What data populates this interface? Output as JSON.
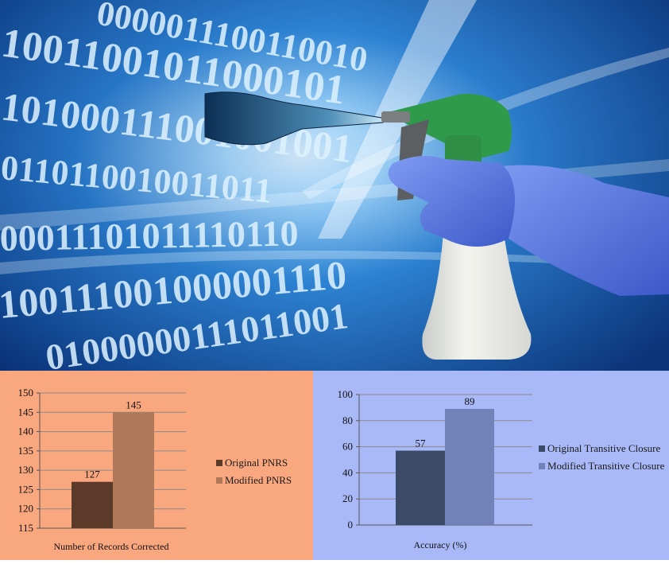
{
  "illustration": {
    "binary_rows": [
      "0000011100110010",
      "10011001011000101",
      "101000111001001001",
      "0110110010011011",
      "00011101011110110",
      "100111001000001110",
      "01000000111011001"
    ]
  },
  "chart_data": [
    {
      "type": "bar",
      "categories": [
        "Number of Records Corrected"
      ],
      "series": [
        {
          "name": "Original PNRS",
          "values": [
            127
          ],
          "color": "#5b3a29"
        },
        {
          "name": "Modified PNRS",
          "values": [
            145
          ],
          "color": "#b07a5a"
        }
      ],
      "xlabel": "Number of Records Corrected",
      "ylim": [
        115,
        150
      ],
      "yticks": [
        115,
        120,
        125,
        130,
        135,
        140,
        145,
        150
      ],
      "data_labels": [
        "127",
        "145"
      ],
      "grid": true,
      "legend_position": "right"
    },
    {
      "type": "bar",
      "categories": [
        "Accuracy (%)"
      ],
      "series": [
        {
          "name": "Original Transitive Closure",
          "values": [
            57
          ],
          "color": "#3b4a66"
        },
        {
          "name": "Modified Transitive Closure",
          "values": [
            89
          ],
          "color": "#7082b8"
        }
      ],
      "xlabel": "Accuracy (%)",
      "ylim": [
        0,
        100
      ],
      "yticks": [
        0,
        20,
        40,
        60,
        80,
        100
      ],
      "data_labels": [
        "57",
        "89"
      ],
      "grid": true,
      "legend_position": "right"
    }
  ]
}
